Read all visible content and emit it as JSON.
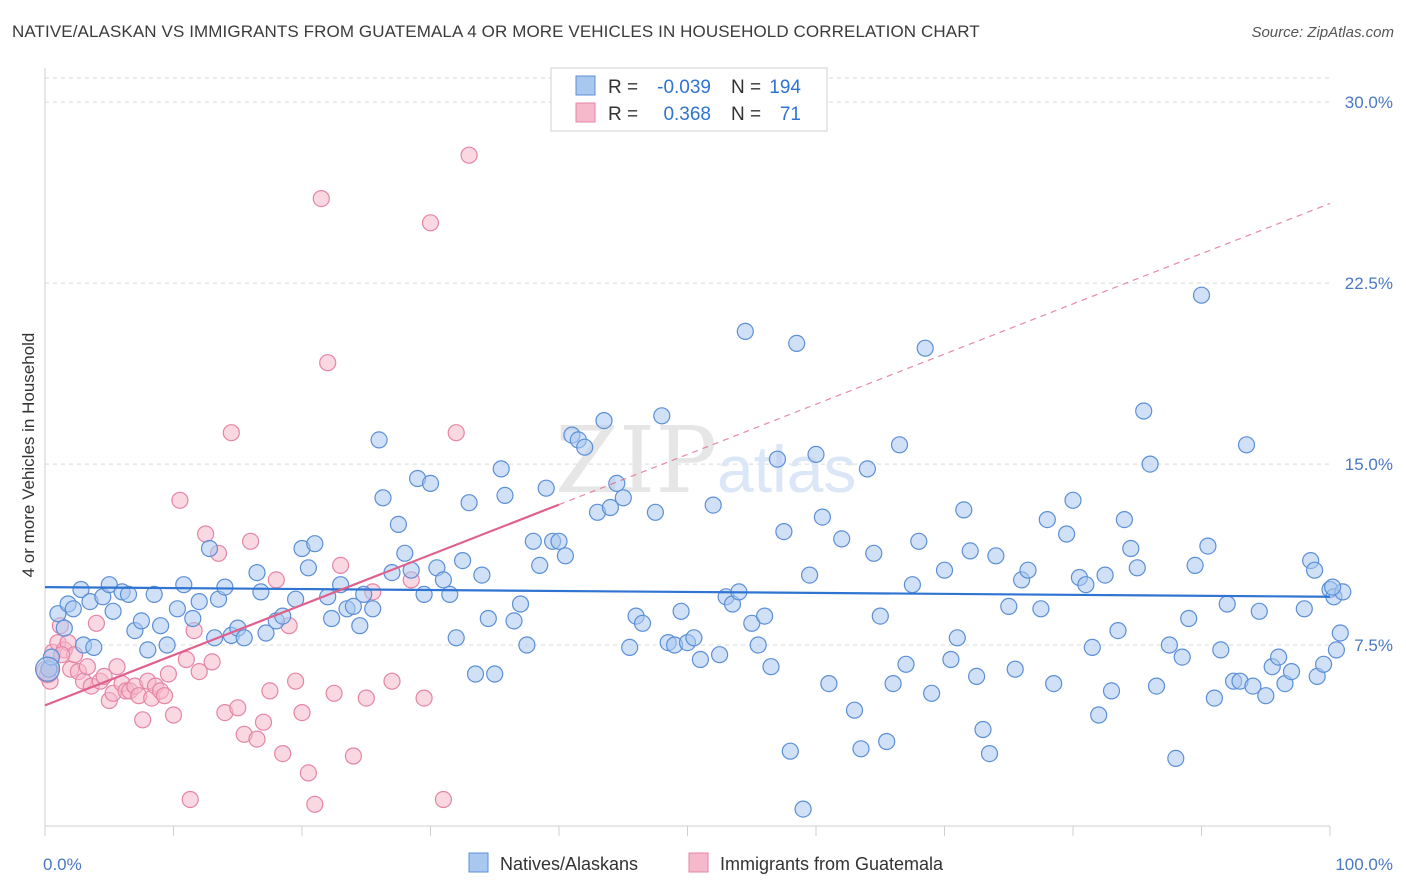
{
  "title": "NATIVE/ALASKAN VS IMMIGRANTS FROM GUATEMALA 4 OR MORE VEHICLES IN HOUSEHOLD CORRELATION CHART",
  "source": "Source: ZipAtlas.com",
  "watermark": {
    "zip": "ZIP",
    "atlas": "atlas"
  },
  "colors": {
    "blue_fill": "#a9c8f0",
    "blue_stroke": "#5b8fd6",
    "blue_line": "#2f74d0",
    "pink_fill": "#f6b8cb",
    "pink_stroke": "#e585a6",
    "pink_line": "#e0608c",
    "tick_text": "#4a78c2",
    "grid": "#d9d9d9"
  },
  "legend": {
    "rows": [
      {
        "r_label": "R =",
        "r_value": "-0.039",
        "n_label": "N =",
        "n_value": "194"
      },
      {
        "r_label": "R =",
        "r_value": "0.368",
        "n_label": "N =",
        "n_value": "71"
      }
    ]
  },
  "chart_data": {
    "type": "scatter",
    "title": "NATIVE/ALASKAN VS IMMIGRANTS FROM GUATEMALA 4 OR MORE VEHICLES IN HOUSEHOLD CORRELATION CHART",
    "xlabel": "",
    "ylabel": "4 or more Vehicles in Household",
    "xlim": [
      0,
      100
    ],
    "ylim": [
      0,
      31
    ],
    "x_tick_labels": [
      "0.0%",
      "100.0%"
    ],
    "y_ticks": [
      7.5,
      15.0,
      22.5,
      30.0
    ],
    "y_tick_labels": [
      "7.5%",
      "15.0%",
      "22.5%",
      "30.0%"
    ],
    "grid": "horizontal dashed",
    "legend_position": "top-center",
    "series": [
      {
        "name": "Natives/Alaskans",
        "R": -0.039,
        "N": 194,
        "trend": {
          "x": [
            0,
            100
          ],
          "y": [
            9.9,
            9.5
          ],
          "style": "solid"
        },
        "points": [
          [
            0.3,
            6.5
          ],
          [
            0.5,
            7.0
          ],
          [
            1.0,
            8.8
          ],
          [
            1.5,
            8.2
          ],
          [
            1.8,
            9.2
          ],
          [
            2.2,
            9.0
          ],
          [
            2.8,
            9.8
          ],
          [
            3.0,
            7.5
          ],
          [
            3.5,
            9.3
          ],
          [
            3.8,
            7.4
          ],
          [
            4.5,
            9.5
          ],
          [
            5.0,
            10.0
          ],
          [
            5.3,
            8.9
          ],
          [
            6.0,
            9.7
          ],
          [
            6.5,
            9.6
          ],
          [
            7.0,
            8.1
          ],
          [
            7.5,
            8.5
          ],
          [
            8.0,
            7.3
          ],
          [
            8.5,
            9.6
          ],
          [
            9.0,
            8.3
          ],
          [
            9.5,
            7.5
          ],
          [
            10.3,
            9.0
          ],
          [
            10.8,
            10.0
          ],
          [
            11.5,
            8.6
          ],
          [
            12.0,
            9.3
          ],
          [
            12.8,
            11.5
          ],
          [
            13.2,
            7.8
          ],
          [
            13.5,
            9.4
          ],
          [
            14.0,
            9.9
          ],
          [
            14.5,
            7.9
          ],
          [
            15.0,
            8.2
          ],
          [
            15.5,
            7.8
          ],
          [
            16.5,
            10.5
          ],
          [
            16.8,
            9.7
          ],
          [
            17.2,
            8.0
          ],
          [
            18.0,
            8.5
          ],
          [
            18.5,
            8.7
          ],
          [
            19.5,
            9.4
          ],
          [
            20.0,
            11.5
          ],
          [
            20.5,
            10.7
          ],
          [
            21.0,
            11.7
          ],
          [
            22.0,
            9.5
          ],
          [
            22.3,
            8.6
          ],
          [
            23.0,
            10.0
          ],
          [
            23.5,
            9.0
          ],
          [
            24.0,
            9.1
          ],
          [
            24.5,
            8.3
          ],
          [
            24.8,
            9.6
          ],
          [
            25.5,
            9.0
          ],
          [
            26.0,
            16.0
          ],
          [
            26.3,
            13.6
          ],
          [
            27.0,
            10.5
          ],
          [
            27.5,
            12.5
          ],
          [
            28.0,
            11.3
          ],
          [
            28.5,
            10.6
          ],
          [
            29.0,
            14.4
          ],
          [
            29.5,
            9.6
          ],
          [
            30.0,
            14.2
          ],
          [
            30.5,
            10.7
          ],
          [
            31.0,
            10.2
          ],
          [
            31.5,
            9.6
          ],
          [
            32.0,
            7.8
          ],
          [
            32.5,
            11.0
          ],
          [
            33.0,
            13.4
          ],
          [
            33.5,
            6.3
          ],
          [
            34.0,
            10.4
          ],
          [
            34.5,
            8.6
          ],
          [
            35.0,
            6.3
          ],
          [
            35.5,
            14.8
          ],
          [
            35.8,
            13.7
          ],
          [
            36.5,
            8.5
          ],
          [
            37.0,
            9.2
          ],
          [
            37.5,
            7.5
          ],
          [
            38.0,
            11.8
          ],
          [
            38.5,
            10.8
          ],
          [
            39.0,
            14.0
          ],
          [
            39.5,
            11.8
          ],
          [
            40.0,
            11.8
          ],
          [
            40.5,
            11.2
          ],
          [
            41.0,
            16.2
          ],
          [
            41.5,
            16.0
          ],
          [
            42.0,
            15.7
          ],
          [
            43.0,
            13.0
          ],
          [
            43.5,
            16.8
          ],
          [
            44.0,
            13.2
          ],
          [
            44.5,
            14.2
          ],
          [
            45.0,
            13.6
          ],
          [
            45.5,
            7.4
          ],
          [
            46.0,
            8.7
          ],
          [
            46.5,
            8.4
          ],
          [
            47.5,
            13.0
          ],
          [
            48.0,
            17.0
          ],
          [
            48.5,
            7.6
          ],
          [
            49.0,
            7.5
          ],
          [
            49.5,
            8.9
          ],
          [
            50.0,
            7.6
          ],
          [
            50.5,
            7.8
          ],
          [
            51.0,
            6.9
          ],
          [
            52.0,
            13.3
          ],
          [
            52.5,
            7.1
          ],
          [
            53.0,
            9.5
          ],
          [
            53.5,
            9.2
          ],
          [
            54.0,
            9.7
          ],
          [
            54.5,
            20.5
          ],
          [
            55.0,
            8.4
          ],
          [
            55.5,
            7.5
          ],
          [
            56.0,
            8.7
          ],
          [
            56.5,
            6.6
          ],
          [
            57.0,
            15.2
          ],
          [
            57.5,
            12.2
          ],
          [
            58.0,
            3.1
          ],
          [
            58.5,
            20.0
          ],
          [
            59.0,
            0.7
          ],
          [
            59.5,
            10.4
          ],
          [
            60.0,
            15.4
          ],
          [
            60.5,
            12.8
          ],
          [
            61.0,
            5.9
          ],
          [
            62.0,
            11.9
          ],
          [
            63.0,
            4.8
          ],
          [
            63.5,
            3.2
          ],
          [
            64.0,
            14.8
          ],
          [
            64.5,
            11.3
          ],
          [
            65.0,
            8.7
          ],
          [
            65.5,
            3.5
          ],
          [
            66.0,
            5.9
          ],
          [
            66.5,
            15.8
          ],
          [
            67.0,
            6.7
          ],
          [
            67.5,
            10.0
          ],
          [
            68.0,
            11.8
          ],
          [
            68.5,
            19.8
          ],
          [
            69.0,
            5.5
          ],
          [
            70.0,
            10.6
          ],
          [
            70.5,
            6.9
          ],
          [
            71.0,
            7.8
          ],
          [
            71.5,
            13.1
          ],
          [
            72.0,
            11.4
          ],
          [
            72.5,
            6.2
          ],
          [
            73.0,
            4.0
          ],
          [
            73.5,
            3.0
          ],
          [
            74.0,
            11.2
          ],
          [
            75.0,
            9.1
          ],
          [
            75.5,
            6.5
          ],
          [
            76.0,
            10.2
          ],
          [
            76.5,
            10.6
          ],
          [
            77.5,
            9.0
          ],
          [
            78.0,
            12.7
          ],
          [
            78.5,
            5.9
          ],
          [
            79.5,
            12.1
          ],
          [
            80.0,
            13.5
          ],
          [
            80.5,
            10.3
          ],
          [
            81.0,
            10.0
          ],
          [
            81.5,
            7.4
          ],
          [
            82.0,
            4.6
          ],
          [
            82.5,
            10.4
          ],
          [
            83.0,
            5.6
          ],
          [
            83.5,
            8.1
          ],
          [
            84.0,
            12.7
          ],
          [
            84.5,
            11.5
          ],
          [
            85.0,
            10.7
          ],
          [
            85.5,
            17.2
          ],
          [
            86.0,
            15.0
          ],
          [
            86.5,
            5.8
          ],
          [
            87.5,
            7.5
          ],
          [
            88.0,
            2.8
          ],
          [
            88.5,
            7.0
          ],
          [
            89.0,
            8.6
          ],
          [
            89.5,
            10.8
          ],
          [
            90.0,
            22.0
          ],
          [
            90.5,
            11.6
          ],
          [
            91.0,
            5.3
          ],
          [
            91.5,
            7.3
          ],
          [
            92.0,
            9.2
          ],
          [
            92.5,
            6.0
          ],
          [
            93.0,
            6.0
          ],
          [
            93.5,
            15.8
          ],
          [
            94.0,
            5.8
          ],
          [
            94.5,
            8.9
          ],
          [
            95.0,
            5.4
          ],
          [
            95.5,
            6.6
          ],
          [
            96.0,
            7.0
          ],
          [
            96.5,
            5.9
          ],
          [
            97.0,
            6.4
          ],
          [
            98.0,
            9.0
          ],
          [
            98.5,
            11.0
          ],
          [
            98.8,
            10.6
          ],
          [
            99.0,
            6.2
          ],
          [
            99.5,
            6.7
          ],
          [
            100.0,
            9.8
          ],
          [
            100.3,
            9.5
          ],
          [
            100.5,
            7.3
          ],
          [
            100.8,
            8.0
          ],
          [
            101.0,
            9.7
          ],
          [
            100.2,
            9.9
          ]
        ]
      },
      {
        "name": "Immigrants from Guatemala",
        "R": 0.368,
        "N": 71,
        "trend": {
          "x": [
            0,
            100
          ],
          "y": [
            5.0,
            25.8
          ],
          "style": "solid to x=40, dashed beyond"
        },
        "points": [
          [
            0.2,
            6.3
          ],
          [
            0.4,
            6.0
          ],
          [
            0.6,
            7.2
          ],
          [
            1.0,
            7.6
          ],
          [
            1.2,
            8.3
          ],
          [
            1.5,
            7.3
          ],
          [
            1.8,
            7.6
          ],
          [
            2.0,
            6.5
          ],
          [
            2.3,
            7.1
          ],
          [
            2.6,
            6.4
          ],
          [
            3.0,
            6.0
          ],
          [
            3.3,
            6.6
          ],
          [
            3.6,
            5.8
          ],
          [
            4.0,
            8.4
          ],
          [
            4.3,
            6.0
          ],
          [
            4.6,
            6.2
          ],
          [
            5.0,
            5.2
          ],
          [
            5.3,
            5.5
          ],
          [
            5.6,
            6.6
          ],
          [
            6.0,
            5.9
          ],
          [
            6.3,
            5.6
          ],
          [
            6.6,
            5.6
          ],
          [
            7.0,
            5.8
          ],
          [
            7.3,
            5.4
          ],
          [
            7.6,
            4.4
          ],
          [
            8.0,
            6.0
          ],
          [
            8.3,
            5.3
          ],
          [
            8.6,
            5.8
          ],
          [
            9.0,
            5.6
          ],
          [
            9.3,
            5.4
          ],
          [
            9.6,
            6.3
          ],
          [
            10.0,
            4.6
          ],
          [
            10.5,
            13.5
          ],
          [
            11.0,
            6.9
          ],
          [
            11.3,
            1.1
          ],
          [
            11.6,
            8.1
          ],
          [
            12.0,
            6.4
          ],
          [
            12.5,
            12.1
          ],
          [
            13.0,
            6.8
          ],
          [
            13.5,
            11.3
          ],
          [
            14.0,
            4.7
          ],
          [
            14.5,
            16.3
          ],
          [
            15.0,
            4.9
          ],
          [
            15.5,
            3.8
          ],
          [
            16.0,
            11.8
          ],
          [
            16.5,
            3.6
          ],
          [
            17.0,
            4.3
          ],
          [
            17.5,
            5.6
          ],
          [
            18.0,
            10.2
          ],
          [
            18.5,
            3.0
          ],
          [
            19.0,
            8.3
          ],
          [
            19.5,
            6.0
          ],
          [
            20.0,
            4.7
          ],
          [
            20.5,
            2.2
          ],
          [
            21.0,
            0.9
          ],
          [
            21.5,
            26.0
          ],
          [
            22.0,
            19.2
          ],
          [
            22.5,
            5.5
          ],
          [
            23.0,
            10.8
          ],
          [
            24.0,
            2.9
          ],
          [
            25.0,
            5.3
          ],
          [
            25.5,
            9.7
          ],
          [
            27.0,
            6.0
          ],
          [
            28.5,
            10.2
          ],
          [
            29.5,
            5.3
          ],
          [
            30.0,
            25.0
          ],
          [
            31.0,
            1.1
          ],
          [
            32.0,
            16.3
          ],
          [
            33.0,
            27.8
          ],
          [
            0.5,
            6.6
          ],
          [
            1.3,
            7.1
          ]
        ]
      }
    ],
    "bottom_legend": [
      "Natives/Alaskans",
      "Immigrants from Guatemala"
    ]
  }
}
